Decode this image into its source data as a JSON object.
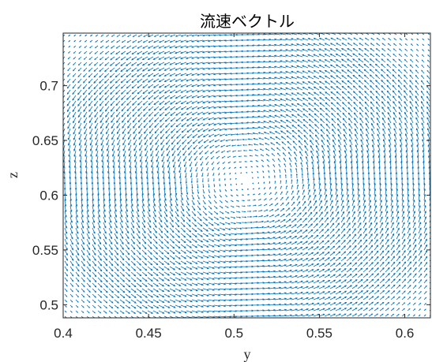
{
  "chart_data": {
    "type": "quiver",
    "title": "流速ベクトル",
    "xlabel": "y",
    "ylabel": "z",
    "xlim": [
      0.4,
      0.615
    ],
    "ylim": [
      0.488,
      0.748
    ],
    "xticks": [
      0.4,
      0.45,
      0.5,
      0.55,
      0.6
    ],
    "xtick_labels": [
      "0.4",
      "0.45",
      "0.5",
      "0.55",
      "0.6"
    ],
    "yticks": [
      0.5,
      0.55,
      0.6,
      0.65,
      0.7
    ],
    "ytick_labels": [
      "0.5",
      "0.55",
      "0.6",
      "0.65",
      "0.7"
    ],
    "vortex_center": [
      0.507,
      0.614
    ],
    "rotation": "counterclockwise",
    "grid": false,
    "color": "#0072BD"
  }
}
